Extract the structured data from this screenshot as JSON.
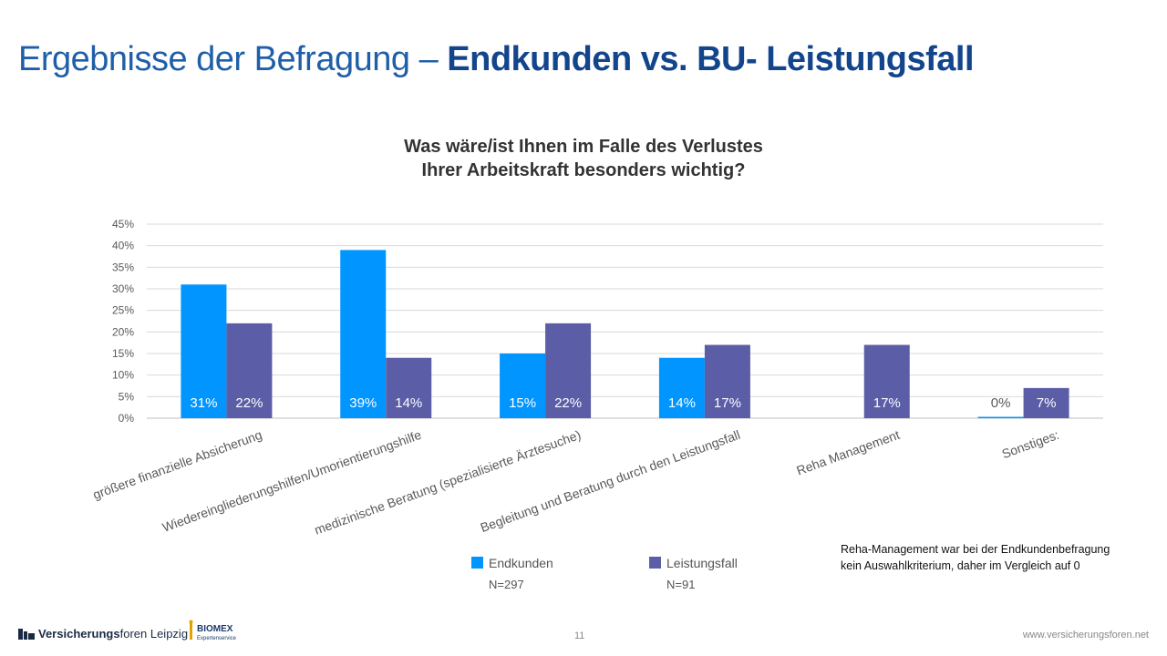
{
  "slide": {
    "title_regular": "Ergebnisse der Befragung – ",
    "title_bold": "Endkunden vs. BU- Leistungsfall",
    "page_number": "11",
    "footer_url": "www.versicherungsforen.net",
    "logo_bold": "Versicherungs",
    "logo_regular": "foren Leipzig",
    "biomex_top": "BIOMEX",
    "biomex_bottom": "Expertenservice"
  },
  "legend": [
    {
      "label": "Endkunden",
      "n": "N=297",
      "color": "#0095ff"
    },
    {
      "label": "Leistungsfall",
      "n": "N=91",
      "color": "#5b5ea6"
    }
  ],
  "note": "Reha-Management war bei der Endkundenbefragung kein Auswahlkriterium, daher im Vergleich auf 0",
  "chart_data": {
    "type": "bar",
    "title_lines": [
      "Was wäre/ist Ihnen im Falle des Verlustes",
      "Ihrer Arbeitskraft besonders wichtig?"
    ],
    "categories": [
      "größere finanzielle Absicherung",
      "Wiedereingliederungshilfen/Umorientierungshilfe",
      "medizinische Beratung (spezialisierte Ärztesuche)",
      "Begleitung und Beratung durch den Leistungsfall",
      "Reha Management",
      "Sonstiges:"
    ],
    "series": [
      {
        "name": "Endkunden",
        "color": "#0095ff",
        "values": [
          31,
          39,
          15,
          14,
          null,
          0
        ],
        "labels": [
          "31%",
          "39%",
          "15%",
          "14%",
          "",
          "0%"
        ]
      },
      {
        "name": "Leistungsfall",
        "color": "#5b5ea6",
        "values": [
          22,
          14,
          22,
          17,
          17,
          7
        ],
        "labels": [
          "22%",
          "14%",
          "22%",
          "17%",
          "17%",
          "7%"
        ]
      }
    ],
    "ylim": [
      0,
      45
    ],
    "yticks": [
      "0%",
      "5%",
      "10%",
      "15%",
      "20%",
      "25%",
      "30%",
      "35%",
      "40%",
      "45%"
    ],
    "grid": true,
    "legend_position": "bottom"
  }
}
